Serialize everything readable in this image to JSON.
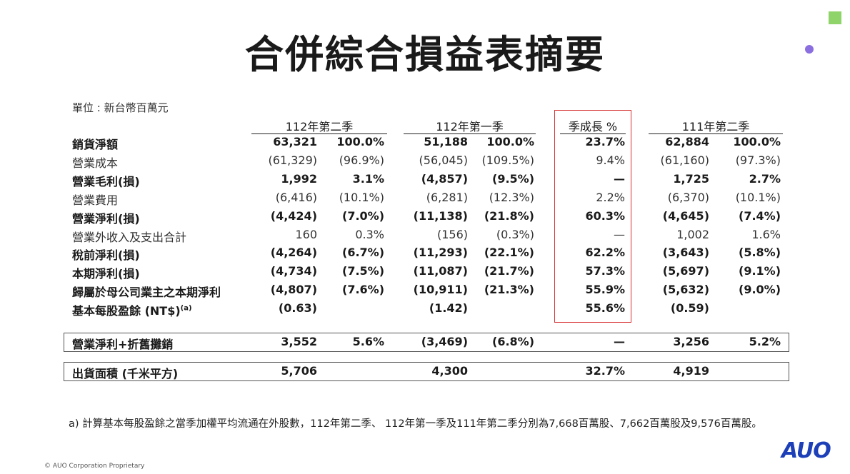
{
  "title": "合併綜合損益表摘要",
  "unit": "單位 : 新台幣百萬元",
  "headers": {
    "q2_112": "112年第二季",
    "q1_112": "112年第一季",
    "growth": "季成長 %",
    "q2_111": "111年第二季"
  },
  "rows": [
    {
      "label": "銷貨淨額",
      "bold": true,
      "v": [
        "63,321",
        "100.0%",
        "51,188",
        "100.0%",
        "23.7%",
        "62,884",
        "100.0%"
      ]
    },
    {
      "label": "營業成本",
      "bold": false,
      "v": [
        "(61,329)",
        "(96.9%)",
        "(56,045)",
        "(109.5%)",
        "9.4%",
        "(61,160)",
        "(97.3%)"
      ]
    },
    {
      "label": "營業毛利(損)",
      "bold": true,
      "v": [
        "1,992",
        "3.1%",
        "(4,857)",
        "(9.5%)",
        "—",
        "1,725",
        "2.7%"
      ]
    },
    {
      "label": "營業費用",
      "bold": false,
      "v": [
        "(6,416)",
        "(10.1%)",
        "(6,281)",
        "(12.3%)",
        "2.2%",
        "(6,370)",
        "(10.1%)"
      ]
    },
    {
      "label": "營業淨利(損)",
      "bold": true,
      "v": [
        "(4,424)",
        "(7.0%)",
        "(11,138)",
        "(21.8%)",
        "60.3%",
        "(4,645)",
        "(7.4%)"
      ]
    },
    {
      "label": "營業外收入及支出合計",
      "bold": false,
      "v": [
        "160",
        "0.3%",
        "(156)",
        "(0.3%)",
        "—",
        "1,002",
        "1.6%"
      ]
    },
    {
      "label": "稅前淨利(損)",
      "bold": true,
      "v": [
        "(4,264)",
        "(6.7%)",
        "(11,293)",
        "(22.1%)",
        "62.2%",
        "(3,643)",
        "(5.8%)"
      ]
    },
    {
      "label": "本期淨利(損)",
      "bold": true,
      "v": [
        "(4,734)",
        "(7.5%)",
        "(11,087)",
        "(21.7%)",
        "57.3%",
        "(5,697)",
        "(9.1%)"
      ]
    },
    {
      "label": "歸屬於母公司業主之本期淨利",
      "bold": true,
      "v": [
        "(4,807)",
        "(7.6%)",
        "(10,911)",
        "(21.3%)",
        "55.9%",
        "(5,632)",
        "(9.0%)"
      ]
    },
    {
      "label": "基本每股盈餘 (NT$)",
      "sup": "(a)",
      "bold": true,
      "v": [
        "(0.63)",
        "",
        "(1.42)",
        "",
        "55.6%",
        "(0.59)",
        ""
      ]
    }
  ],
  "ebitda_row": {
    "label": "營業淨利+折舊攤銷",
    "v": [
      "3,552",
      "5.6%",
      "(3,469)",
      "(6.8%)",
      "—",
      "3,256",
      "5.2%"
    ]
  },
  "shipment_row": {
    "label": "出貨面積 (千米平方)",
    "v": [
      "5,706",
      "",
      "4,300",
      "",
      "32.7%",
      "4,919",
      ""
    ]
  },
  "footnote": "a)  計算基本每股盈餘之當季加權平均流通在外股數，112年第二季、 112年第一季及111年第二季分別為7,668百萬股、7,662百萬股及9,576百萬股。",
  "copyright": "© AUO Corporation Proprietary",
  "logo": "AUO",
  "colors": {
    "logo": "#1d3fb8",
    "highlight_box": "#d43030",
    "accent_square": "#8fd36b",
    "accent_dot": "#8b6ee0"
  }
}
